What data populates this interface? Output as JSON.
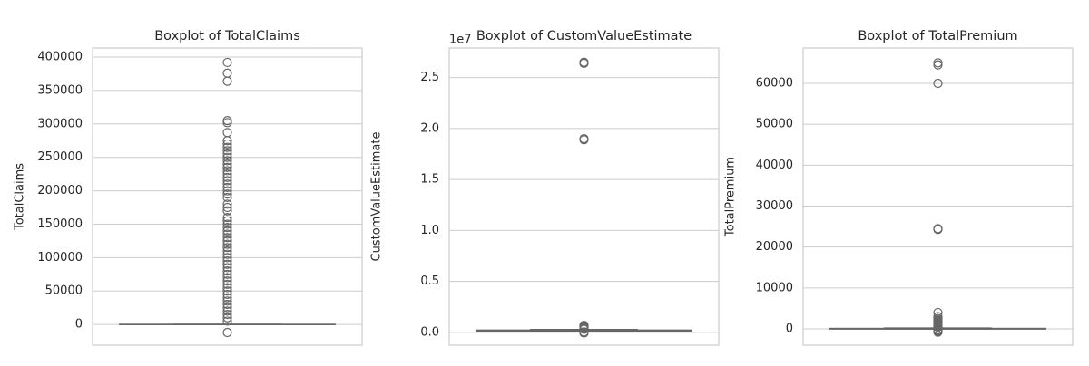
{
  "chart_data": [
    {
      "type": "box",
      "title": "Boxplot of TotalClaims",
      "ylabel": "TotalClaims",
      "color": "#808080",
      "ylim": [
        -31000,
        413600
      ],
      "yticks": [
        0,
        50000,
        100000,
        150000,
        200000,
        250000,
        300000,
        350000,
        400000
      ],
      "grid": true,
      "whislo": 0,
      "q1": 0,
      "med": 0,
      "q3": 0,
      "whishi": 0,
      "outliers": [
        392000,
        376000,
        364000,
        305000,
        302000,
        287000,
        275000,
        270000,
        265000,
        260000,
        255000,
        250000,
        245000,
        240000,
        235000,
        230000,
        225000,
        220000,
        215000,
        210000,
        205000,
        200000,
        195000,
        190000,
        180000,
        175000,
        170000,
        160000,
        155000,
        150000,
        145000,
        140000,
        135000,
        130000,
        125000,
        120000,
        115000,
        110000,
        105000,
        100000,
        95000,
        90000,
        85000,
        80000,
        75000,
        70000,
        65000,
        60000,
        55000,
        50000,
        45000,
        40000,
        35000,
        30000,
        25000,
        20000,
        15000,
        10000,
        5000,
        -12000
      ]
    },
    {
      "type": "box",
      "title": "Boxplot of CustomValueEstimate",
      "ylabel": "CustomValueEstimate",
      "offset_label": "1e7",
      "color": "#808080",
      "ylim": [
        -0.125,
        2.79
      ],
      "yticks": [
        {
          "value": 0,
          "label": "0.0"
        },
        0.5,
        {
          "value": 1,
          "label": "1.0"
        },
        1.5,
        {
          "value": 2,
          "label": "2.0"
        },
        2.5
      ],
      "grid": true,
      "whislo": 0.01,
      "q1": 0.015,
      "med": 0.02,
      "q3": 0.022,
      "whishi": 0.028,
      "outliers": [
        2.65,
        2.64,
        1.9,
        1.89,
        0.07,
        0.065,
        0.06,
        0.055,
        0.05,
        0.045,
        0.04,
        0.035,
        0.03,
        0.005,
        -0.005
      ]
    },
    {
      "type": "box",
      "title": "Boxplot of TotalPremium",
      "ylabel": "TotalPremium",
      "color": "#808080",
      "ylim": [
        -3985,
        68630
      ],
      "yticks": [
        0,
        10000,
        20000,
        30000,
        40000,
        50000,
        60000
      ],
      "grid": true,
      "whislo": 0,
      "q1": 0,
      "med": 0,
      "q3": 100,
      "whishi": 200,
      "outliers": [
        65000,
        64500,
        60000,
        24500,
        24300,
        4000,
        3000,
        2500,
        2200,
        2000,
        1800,
        1600,
        1400,
        1200,
        1000,
        800,
        600,
        400,
        -200,
        -400,
        -600,
        -800
      ]
    }
  ]
}
